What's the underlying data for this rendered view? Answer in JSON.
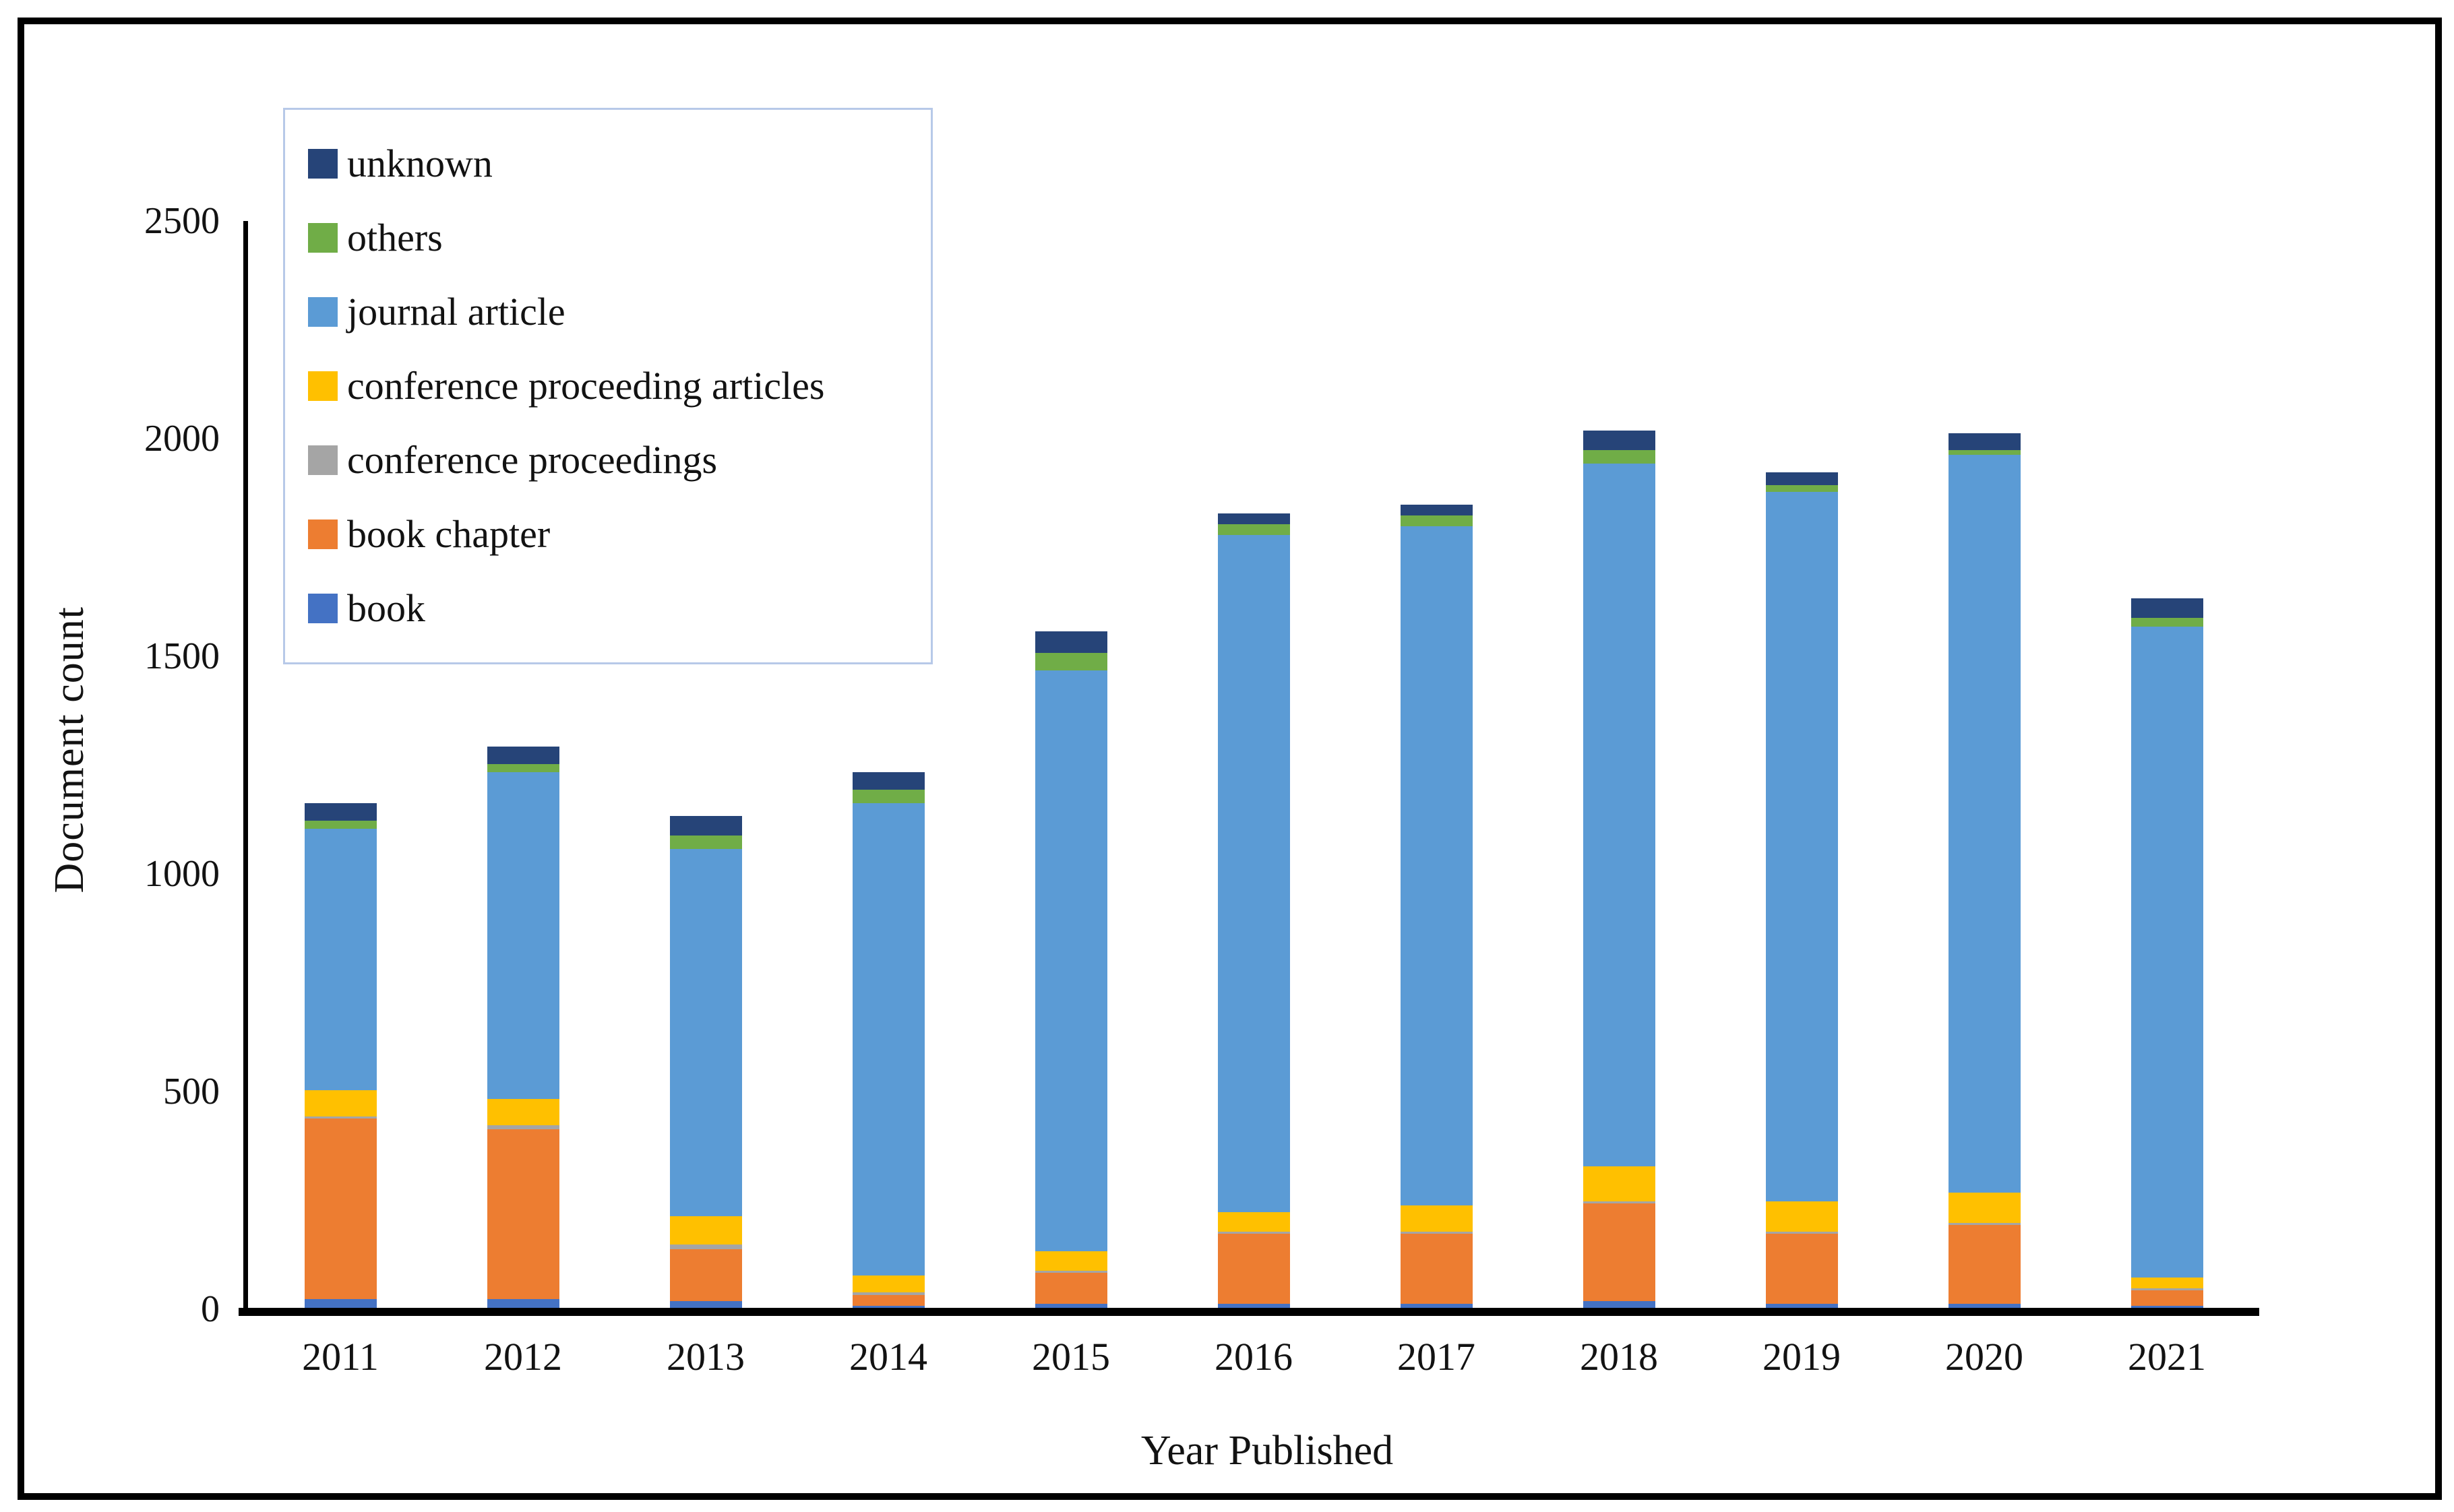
{
  "figure": {
    "background": "#ffffff",
    "frame_color": "#000000",
    "legend_border_color": "#B7C9E8"
  },
  "chart_data": {
    "type": "bar",
    "stacked": true,
    "title": "",
    "xlabel": "Year Published",
    "ylabel": "Document count",
    "ylim": [
      0,
      2500
    ],
    "yticks": [
      0,
      500,
      1000,
      1500,
      2000,
      2500
    ],
    "grid": false,
    "legend_position": "upper-left",
    "legend_order_top_to_bottom": [
      "unknown",
      "others",
      "journal article",
      "conference proceeding articles",
      "conference proceedings",
      "book chapter",
      "book"
    ],
    "categories": [
      "2011",
      "2012",
      "2013",
      "2014",
      "2015",
      "2016",
      "2017",
      "2018",
      "2019",
      "2020",
      "2021"
    ],
    "series": [
      {
        "name": "book",
        "color": "#4472C4",
        "values": [
          20,
          20,
          15,
          5,
          10,
          10,
          10,
          15,
          10,
          10,
          5
        ]
      },
      {
        "name": "book chapter",
        "color": "#ED7D31",
        "values": [
          415,
          390,
          120,
          25,
          70,
          160,
          160,
          225,
          160,
          180,
          35
        ]
      },
      {
        "name": "conference proceedings",
        "color": "#A5A5A5",
        "values": [
          5,
          10,
          10,
          5,
          5,
          5,
          5,
          5,
          5,
          5,
          5
        ]
      },
      {
        "name": "conference proceeding articles",
        "color": "#FFC000",
        "values": [
          60,
          60,
          65,
          40,
          45,
          45,
          60,
          80,
          70,
          70,
          25
        ]
      },
      {
        "name": "journal article",
        "color": "#5B9BD5",
        "values": [
          600,
          750,
          845,
          1085,
          1335,
          1555,
          1560,
          1615,
          1630,
          1695,
          1495
        ]
      },
      {
        "name": "others",
        "color": "#70AD47",
        "values": [
          20,
          20,
          30,
          30,
          40,
          25,
          25,
          30,
          15,
          10,
          20
        ]
      },
      {
        "name": "unknown",
        "color": "#264478",
        "values": [
          40,
          40,
          45,
          40,
          50,
          25,
          25,
          45,
          30,
          40,
          45
        ]
      }
    ],
    "totals": [
      1160,
      1290,
      1130,
      1230,
      1555,
      1825,
      1845,
      2015,
      1920,
      2010,
      1630
    ]
  }
}
